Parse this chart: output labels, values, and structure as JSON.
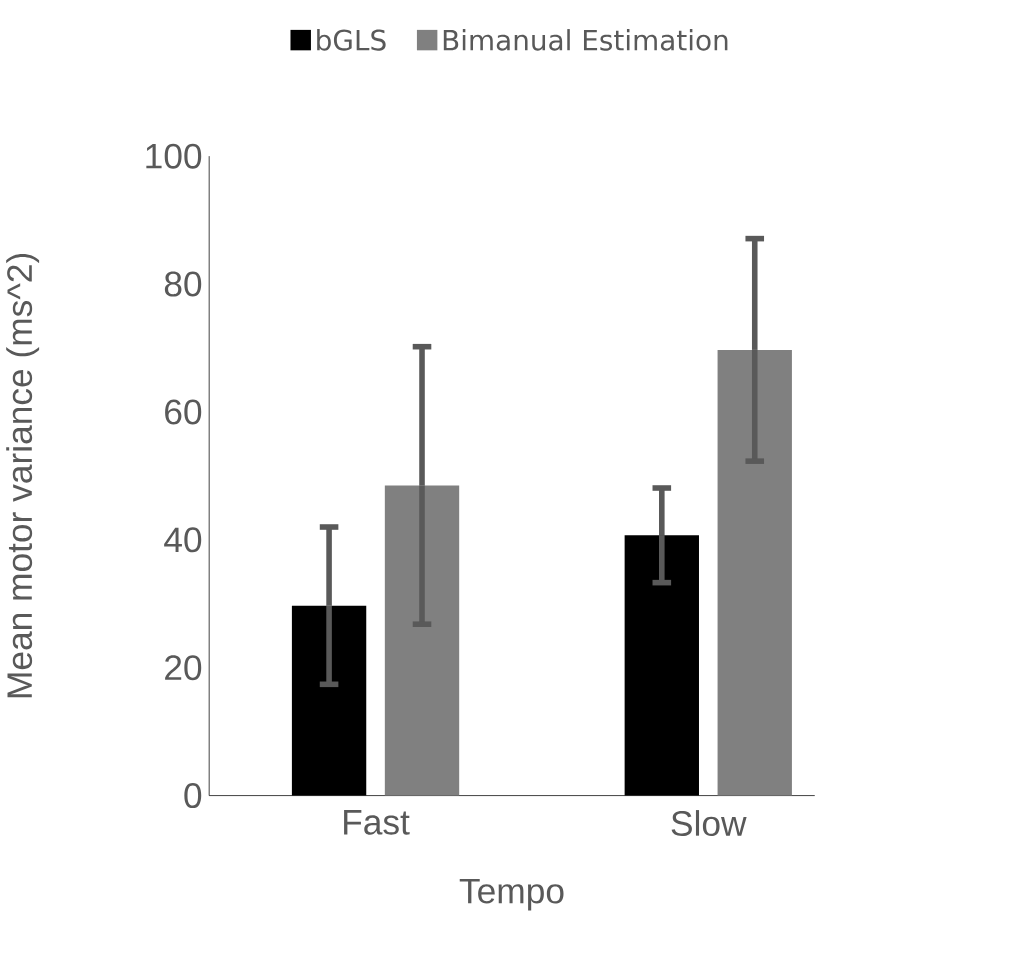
{
  "chart_data": {
    "type": "bar",
    "xlabel": "Tempo",
    "ylabel": "Mean motor variance (ms^2)",
    "categories": [
      "Fast",
      "Slow"
    ],
    "series": [
      {
        "name": "bGLS",
        "color": "#000000",
        "values": [
          29.7,
          40.7
        ],
        "errors": [
          12.3,
          7.4
        ]
      },
      {
        "name": "Bimanual Estimation",
        "color": "#808080",
        "values": [
          48.5,
          69.7
        ],
        "errors": [
          21.7,
          17.4
        ]
      }
    ],
    "ylim": [
      0,
      100
    ],
    "yticks": [
      0,
      20,
      40,
      60,
      80,
      100
    ],
    "legend": "top",
    "grid": false
  }
}
